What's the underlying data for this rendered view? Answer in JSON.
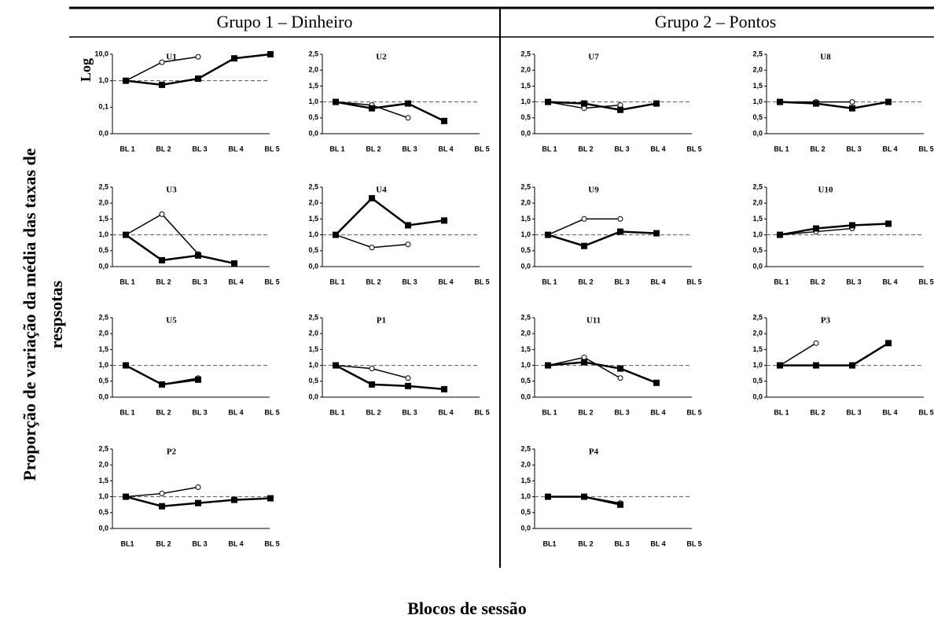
{
  "figure": {
    "groups": [
      "Grupo 1 – Dinheiro",
      "Grupo 2 – Pontos"
    ],
    "ylabel": [
      "Proporção de variação  da média das taxas de",
      "respsotas"
    ],
    "xlabel": "Blocos de sessão"
  },
  "chart_data": [
    {
      "type": "line",
      "title": "U1",
      "side_label": "Log",
      "log": true,
      "categories": [
        "BL 1",
        "BL 2",
        "BL 3",
        "BL 4",
        "BL 5"
      ],
      "ylim": [
        0.01,
        10
      ],
      "yticks": [
        {
          "value": 0.01,
          "label": "0,0"
        },
        {
          "value": 0.1,
          "label": "0,1"
        },
        {
          "value": 1,
          "label": "1,0"
        },
        {
          "value": 10,
          "label": "10,0"
        }
      ],
      "hline": 1,
      "series": [
        {
          "marker": "circle",
          "color": "#000000",
          "values": [
            1,
            5,
            8,
            null,
            null
          ]
        },
        {
          "marker": "square",
          "color": "#000000",
          "values": [
            1,
            0.7,
            1.2,
            7,
            10
          ]
        }
      ]
    },
    {
      "type": "line",
      "title": "U2",
      "categories": [
        "BL 1",
        "BL 2",
        "BL 3",
        "BL 4",
        "BL 5"
      ],
      "ylim": [
        0,
        2.5
      ],
      "yticks": [
        {
          "value": 0,
          "label": "0,0"
        },
        {
          "value": 0.5,
          "label": "0,5"
        },
        {
          "value": 1,
          "label": "1,0"
        },
        {
          "value": 1.5,
          "label": "1,5"
        },
        {
          "value": 2,
          "label": "2,0"
        },
        {
          "value": 2.5,
          "label": "2,5"
        }
      ],
      "hline": 1,
      "series": [
        {
          "marker": "circle",
          "color": "#000000",
          "values": [
            1,
            0.9,
            0.5,
            null,
            null
          ]
        },
        {
          "marker": "square",
          "color": "#000000",
          "values": [
            1,
            0.8,
            0.95,
            0.4,
            null
          ]
        }
      ]
    },
    {
      "type": "line",
      "title": "U3",
      "categories": [
        "BL 1",
        "BL 2",
        "BL 3",
        "BL 4",
        "BL 5"
      ],
      "ylim": [
        0,
        2.5
      ],
      "yticks": [
        {
          "value": 0,
          "label": "0,0"
        },
        {
          "value": 0.5,
          "label": "0,5"
        },
        {
          "value": 1,
          "label": "1,0"
        },
        {
          "value": 1.5,
          "label": "1,5"
        },
        {
          "value": 2,
          "label": "2,0"
        },
        {
          "value": 2.5,
          "label": "2,5"
        }
      ],
      "hline": 1,
      "series": [
        {
          "marker": "circle",
          "color": "#000000",
          "values": [
            1,
            1.65,
            0.4,
            null,
            null
          ]
        },
        {
          "marker": "square",
          "color": "#000000",
          "values": [
            1,
            0.2,
            0.35,
            0.1,
            null
          ]
        }
      ]
    },
    {
      "type": "line",
      "title": "U4",
      "categories": [
        "BL 1",
        "BL 2",
        "BL 3",
        "BL 4",
        "BL 5"
      ],
      "ylim": [
        0,
        2.5
      ],
      "yticks": [
        {
          "value": 0,
          "label": "0,0"
        },
        {
          "value": 0.5,
          "label": "0,5"
        },
        {
          "value": 1,
          "label": "1,0"
        },
        {
          "value": 1.5,
          "label": "1,5"
        },
        {
          "value": 2,
          "label": "2,0"
        },
        {
          "value": 2.5,
          "label": "2,5"
        }
      ],
      "hline": 1,
      "series": [
        {
          "marker": "circle",
          "color": "#000000",
          "values": [
            1,
            0.6,
            0.7,
            null,
            null
          ]
        },
        {
          "marker": "square",
          "color": "#000000",
          "values": [
            1,
            2.15,
            1.3,
            1.45,
            null
          ]
        }
      ]
    },
    {
      "type": "line",
      "title": "U5",
      "categories": [
        "BL 1",
        "BL 2",
        "BL 3",
        "BL 4",
        "BL 5"
      ],
      "ylim": [
        0,
        2.5
      ],
      "yticks": [
        {
          "value": 0,
          "label": "0,0"
        },
        {
          "value": 0.5,
          "label": "0,5"
        },
        {
          "value": 1,
          "label": "1,0"
        },
        {
          "value": 1.5,
          "label": "1,5"
        },
        {
          "value": 2,
          "label": "2,0"
        },
        {
          "value": 2.5,
          "label": "2,5"
        }
      ],
      "hline": 1,
      "series": [
        {
          "marker": "circle",
          "color": "#000000",
          "values": [
            1,
            0.4,
            0.6,
            null,
            null
          ]
        },
        {
          "marker": "square",
          "color": "#000000",
          "values": [
            1,
            0.4,
            0.55,
            null,
            null
          ]
        }
      ]
    },
    {
      "type": "line",
      "title": "P1",
      "categories": [
        "BL 1",
        "BL 2",
        "BL 3",
        "BL 4",
        "BL 5"
      ],
      "ylim": [
        0,
        2.5
      ],
      "yticks": [
        {
          "value": 0,
          "label": "0,0"
        },
        {
          "value": 0.5,
          "label": "0,5"
        },
        {
          "value": 1,
          "label": "1,0"
        },
        {
          "value": 1.5,
          "label": "1,5"
        },
        {
          "value": 2,
          "label": "2,0"
        },
        {
          "value": 2.5,
          "label": "2,5"
        }
      ],
      "hline": 1,
      "series": [
        {
          "marker": "circle",
          "color": "#000000",
          "values": [
            1,
            0.9,
            0.6,
            null,
            null
          ]
        },
        {
          "marker": "square",
          "color": "#000000",
          "values": [
            1,
            0.4,
            0.35,
            0.25,
            null
          ]
        }
      ]
    },
    {
      "type": "line",
      "title": "P2",
      "categories": [
        "BL1",
        "BL 2",
        "BL 3",
        "BL 4",
        "BL 5"
      ],
      "ylim": [
        0,
        2.5
      ],
      "yticks": [
        {
          "value": 0,
          "label": "0,0"
        },
        {
          "value": 0.5,
          "label": "0,5"
        },
        {
          "value": 1,
          "label": "1,0"
        },
        {
          "value": 1.5,
          "label": "1,5"
        },
        {
          "value": 2,
          "label": "2,0"
        },
        {
          "value": 2.5,
          "label": "2,5"
        }
      ],
      "hline": 1,
      "series": [
        {
          "marker": "circle",
          "color": "#000000",
          "values": [
            1,
            1.1,
            1.3,
            null,
            null
          ]
        },
        {
          "marker": "square",
          "color": "#000000",
          "values": [
            1,
            0.7,
            0.8,
            0.9,
            0.95
          ]
        }
      ]
    },
    {
      "type": "line",
      "title": "U7",
      "categories": [
        "BL 1",
        "BL 2",
        "BL 3",
        "BL 4",
        "BL 5"
      ],
      "ylim": [
        0,
        2.5
      ],
      "yticks": [
        {
          "value": 0,
          "label": "0,0"
        },
        {
          "value": 0.5,
          "label": "0,5"
        },
        {
          "value": 1,
          "label": "1,0"
        },
        {
          "value": 1.5,
          "label": "1,5"
        },
        {
          "value": 2,
          "label": "2,0"
        },
        {
          "value": 2.5,
          "label": "2,5"
        }
      ],
      "hline": 1,
      "series": [
        {
          "marker": "circle",
          "color": "#000000",
          "values": [
            1,
            0.8,
            0.9,
            null,
            null
          ]
        },
        {
          "marker": "square",
          "color": "#000000",
          "values": [
            1,
            0.95,
            0.75,
            0.95,
            null
          ]
        }
      ]
    },
    {
      "type": "line",
      "title": "U8",
      "categories": [
        "BL 1",
        "BL 2",
        "BL 3",
        "BL 4",
        "BL 5"
      ],
      "ylim": [
        0,
        2.5
      ],
      "yticks": [
        {
          "value": 0,
          "label": "0,0"
        },
        {
          "value": 0.5,
          "label": "0,5"
        },
        {
          "value": 1,
          "label": "1,0"
        },
        {
          "value": 1.5,
          "label": "1,5"
        },
        {
          "value": 2,
          "label": "2,0"
        },
        {
          "value": 2.5,
          "label": "2,5"
        }
      ],
      "hline": 1,
      "series": [
        {
          "marker": "circle",
          "color": "#000000",
          "values": [
            1,
            1,
            1,
            null,
            null
          ]
        },
        {
          "marker": "square",
          "color": "#000000",
          "values": [
            1,
            0.95,
            0.8,
            1,
            null
          ]
        }
      ]
    },
    {
      "type": "line",
      "title": "U9",
      "categories": [
        "BL 1",
        "BL 2",
        "BL 3",
        "BL 4",
        "BL 5"
      ],
      "ylim": [
        0,
        2.5
      ],
      "yticks": [
        {
          "value": 0,
          "label": "0,0"
        },
        {
          "value": 0.5,
          "label": "0,5"
        },
        {
          "value": 1,
          "label": "1,0"
        },
        {
          "value": 1.5,
          "label": "1,5"
        },
        {
          "value": 2,
          "label": "2,0"
        },
        {
          "value": 2.5,
          "label": "2,5"
        }
      ],
      "hline": 1,
      "series": [
        {
          "marker": "circle",
          "color": "#000000",
          "values": [
            1,
            1.5,
            1.5,
            null,
            null
          ]
        },
        {
          "marker": "square",
          "color": "#000000",
          "values": [
            1,
            0.65,
            1.1,
            1.05,
            null
          ]
        }
      ]
    },
    {
      "type": "line",
      "title": "U10",
      "categories": [
        "BL 1",
        "BL 2",
        "BL 3",
        "BL 4",
        "BL 5"
      ],
      "ylim": [
        0,
        2.5
      ],
      "yticks": [
        {
          "value": 0,
          "label": "0,0"
        },
        {
          "value": 0.5,
          "label": "0,5"
        },
        {
          "value": 1,
          "label": "1,0"
        },
        {
          "value": 1.5,
          "label": "1,5"
        },
        {
          "value": 2,
          "label": "2,0"
        },
        {
          "value": 2.5,
          "label": "2,5"
        }
      ],
      "hline": 1,
      "series": [
        {
          "marker": "circle",
          "color": "#000000",
          "values": [
            1,
            1.1,
            1.2,
            null,
            null
          ]
        },
        {
          "marker": "square",
          "color": "#000000",
          "values": [
            1,
            1.2,
            1.3,
            1.35,
            null
          ]
        }
      ]
    },
    {
      "type": "line",
      "title": "U11",
      "categories": [
        "BL 1",
        "BL 2",
        "BL 3",
        "BL 4",
        "BL 5"
      ],
      "ylim": [
        0,
        2.5
      ],
      "yticks": [
        {
          "value": 0,
          "label": "0,0"
        },
        {
          "value": 0.5,
          "label": "0,5"
        },
        {
          "value": 1,
          "label": "1,0"
        },
        {
          "value": 1.5,
          "label": "1,5"
        },
        {
          "value": 2,
          "label": "2,0"
        },
        {
          "value": 2.5,
          "label": "2,5"
        }
      ],
      "hline": 1,
      "series": [
        {
          "marker": "circle",
          "color": "#000000",
          "values": [
            1,
            1.25,
            0.6,
            null,
            null
          ]
        },
        {
          "marker": "square",
          "color": "#000000",
          "values": [
            1,
            1.1,
            0.9,
            0.45,
            null
          ]
        }
      ]
    },
    {
      "type": "line",
      "title": "P3",
      "categories": [
        "BL 1",
        "BL 2",
        "BL 3",
        "BL 4",
        "BL 5"
      ],
      "ylim": [
        0,
        2.5
      ],
      "yticks": [
        {
          "value": 0,
          "label": "0,0"
        },
        {
          "value": 0.5,
          "label": "0,5"
        },
        {
          "value": 1,
          "label": "1,0"
        },
        {
          "value": 1.5,
          "label": "1,5"
        },
        {
          "value": 2,
          "label": "2,0"
        },
        {
          "value": 2.5,
          "label": "2,5"
        }
      ],
      "hline": 1,
      "series": [
        {
          "marker": "circle",
          "color": "#000000",
          "values": [
            1,
            1.7,
            null,
            null,
            null
          ]
        },
        {
          "marker": "square",
          "color": "#000000",
          "values": [
            1,
            1,
            1,
            1.7,
            null
          ]
        }
      ]
    },
    {
      "type": "line",
      "title": "P4",
      "categories": [
        "BL1",
        "BL 2",
        "BL 3",
        "BL 4",
        "BL 5"
      ],
      "ylim": [
        0,
        2.5
      ],
      "yticks": [
        {
          "value": 0,
          "label": "0,0"
        },
        {
          "value": 0.5,
          "label": "0,5"
        },
        {
          "value": 1,
          "label": "1,0"
        },
        {
          "value": 1.5,
          "label": "1,5"
        },
        {
          "value": 2,
          "label": "2,0"
        },
        {
          "value": 2.5,
          "label": "2,5"
        }
      ],
      "hline": 1,
      "series": [
        {
          "marker": "circle",
          "color": "#000000",
          "values": [
            1,
            1,
            0.8,
            null,
            null
          ]
        },
        {
          "marker": "square",
          "color": "#000000",
          "values": [
            1,
            1,
            0.75,
            null,
            null
          ]
        }
      ]
    }
  ]
}
